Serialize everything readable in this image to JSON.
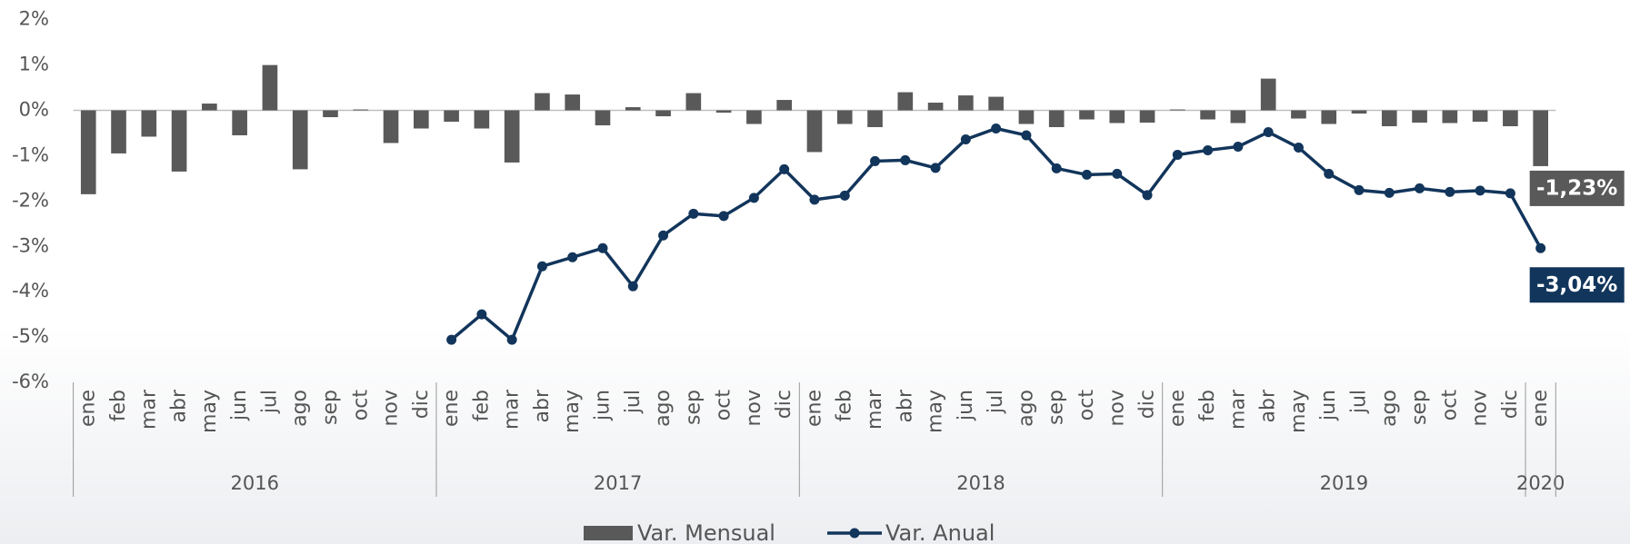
{
  "chart_data": {
    "type": "bar+line",
    "categories": [
      "ene",
      "feb",
      "mar",
      "abr",
      "may",
      "jun",
      "jul",
      "ago",
      "sep",
      "oct",
      "nov",
      "dic",
      "ene",
      "feb",
      "mar",
      "abr",
      "may",
      "jun",
      "jul",
      "ago",
      "sep",
      "oct",
      "nov",
      "dic",
      "ene",
      "feb",
      "mar",
      "abr",
      "may",
      "jun",
      "jul",
      "ago",
      "sep",
      "oct",
      "nov",
      "dic",
      "ene",
      "feb",
      "mar",
      "abr",
      "may",
      "jun",
      "jul",
      "ago",
      "sep",
      "oct",
      "nov",
      "dic",
      "ene"
    ],
    "years": [
      "2016",
      "2017",
      "2018",
      "2019",
      "2020"
    ],
    "series": [
      {
        "name": "Var. Mensual",
        "type": "bar",
        "color": "#595959",
        "values": [
          -1.85,
          -0.95,
          -0.58,
          -1.35,
          0.15,
          -0.55,
          1.0,
          -1.3,
          -0.15,
          0.02,
          -0.72,
          -0.4,
          -0.25,
          -0.4,
          -1.15,
          0.38,
          0.35,
          -0.33,
          0.07,
          -0.13,
          0.38,
          -0.05,
          -0.3,
          0.23,
          -0.92,
          -0.3,
          -0.37,
          0.4,
          0.17,
          0.33,
          0.3,
          -0.3,
          -0.37,
          -0.2,
          -0.28,
          -0.27,
          0.02,
          -0.2,
          -0.28,
          0.7,
          -0.18,
          -0.3,
          -0.07,
          -0.35,
          -0.27,
          -0.28,
          -0.25,
          -0.35,
          -1.23
        ],
        "value_labels": [
          null,
          null,
          null,
          null,
          null,
          null,
          null,
          null,
          null,
          null,
          null,
          null,
          null,
          null,
          null,
          null,
          null,
          null,
          null,
          null,
          null,
          null,
          null,
          null,
          null,
          null,
          null,
          null,
          null,
          null,
          null,
          null,
          null,
          null,
          null,
          null,
          null,
          null,
          null,
          null,
          null,
          null,
          null,
          null,
          null,
          null,
          null,
          null,
          "-1,23%"
        ]
      },
      {
        "name": "Var. Anual",
        "type": "line",
        "color": "#12355b",
        "values": [
          null,
          null,
          null,
          null,
          null,
          null,
          null,
          null,
          null,
          null,
          null,
          null,
          -5.06,
          -4.5,
          -5.06,
          -3.44,
          -3.24,
          -3.04,
          -3.88,
          -2.76,
          -2.28,
          -2.33,
          -1.93,
          -1.3,
          -1.97,
          -1.88,
          -1.12,
          -1.1,
          -1.27,
          -0.64,
          -0.4,
          -0.55,
          -1.28,
          -1.42,
          -1.4,
          -1.87,
          -0.98,
          -0.88,
          -0.8,
          -0.48,
          -0.82,
          -1.4,
          -1.76,
          -1.82,
          -1.72,
          -1.8,
          -1.77,
          -1.83,
          -3.04
        ],
        "value_labels": [
          null,
          null,
          null,
          null,
          null,
          null,
          null,
          null,
          null,
          null,
          null,
          null,
          null,
          null,
          null,
          null,
          null,
          null,
          null,
          null,
          null,
          null,
          null,
          null,
          null,
          null,
          null,
          null,
          null,
          null,
          null,
          null,
          null,
          null,
          null,
          null,
          null,
          null,
          null,
          null,
          null,
          null,
          null,
          null,
          null,
          null,
          null,
          null,
          "-3,04%"
        ]
      }
    ],
    "ylim": [
      -6,
      2
    ],
    "yticks": [
      {
        "value": -6,
        "label": "-6%"
      },
      {
        "value": -5,
        "label": "-5%"
      },
      {
        "value": -4,
        "label": "-4%"
      },
      {
        "value": -3,
        "label": "-3%"
      },
      {
        "value": -2,
        "label": "-2%"
      },
      {
        "value": -1,
        "label": "-1%"
      },
      {
        "value": 0,
        "label": "0%"
      },
      {
        "value": 1,
        "label": "1%"
      },
      {
        "value": 2,
        "label": "2%"
      }
    ],
    "legend": "bottom"
  }
}
